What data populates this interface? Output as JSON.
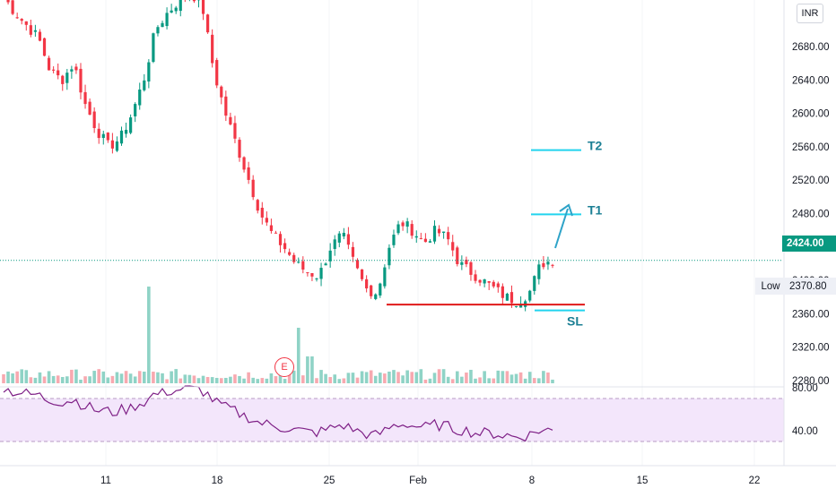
{
  "chart_data": {
    "type": "candlestick",
    "currency": "INR",
    "y_axis": {
      "ticks": [
        "2680.00",
        "2640.00",
        "2600.00",
        "2560.00",
        "2520.00",
        "2480.00",
        "2440.00",
        "2400.00",
        "2320.00",
        "2280.00"
      ],
      "ylim": [
        2260,
        2760
      ]
    },
    "x_axis": {
      "ticks": [
        "11",
        "18",
        "25",
        "Feb",
        "8",
        "15",
        "22"
      ]
    },
    "last_price": "2424.00",
    "low": {
      "label": "Low",
      "value": "2370.80"
    },
    "annotations": [
      {
        "label": "T2",
        "price": 2556
      },
      {
        "label": "T1",
        "price": 2479
      },
      {
        "label": "SL",
        "price": 2364
      }
    ],
    "support_line_price": 2371,
    "earnings_marker": "E",
    "rsi": {
      "ticks": [
        "80.00",
        "40.00"
      ],
      "band": [
        30,
        70
      ]
    },
    "close_path": [
      2740,
      2720,
      2705,
      2690,
      2650,
      2640,
      2660,
      2610,
      2580,
      2560,
      2570,
      2600,
      2640,
      2700,
      2720,
      2735,
      2745,
      2730,
      2650,
      2600,
      2560,
      2520,
      2480,
      2455,
      2440,
      2420,
      2410,
      2405,
      2440,
      2455,
      2420,
      2390,
      2385,
      2440,
      2470,
      2460,
      2445,
      2460,
      2450,
      2420,
      2410,
      2400,
      2390,
      2380,
      2375,
      2385,
      2420,
      2424
    ]
  },
  "colors": {
    "up": "#089981",
    "down": "#f23645",
    "target": "#22d3ee",
    "support": "#e01919",
    "arrow": "#2ea3c8",
    "rsi": "#7e1f86"
  }
}
